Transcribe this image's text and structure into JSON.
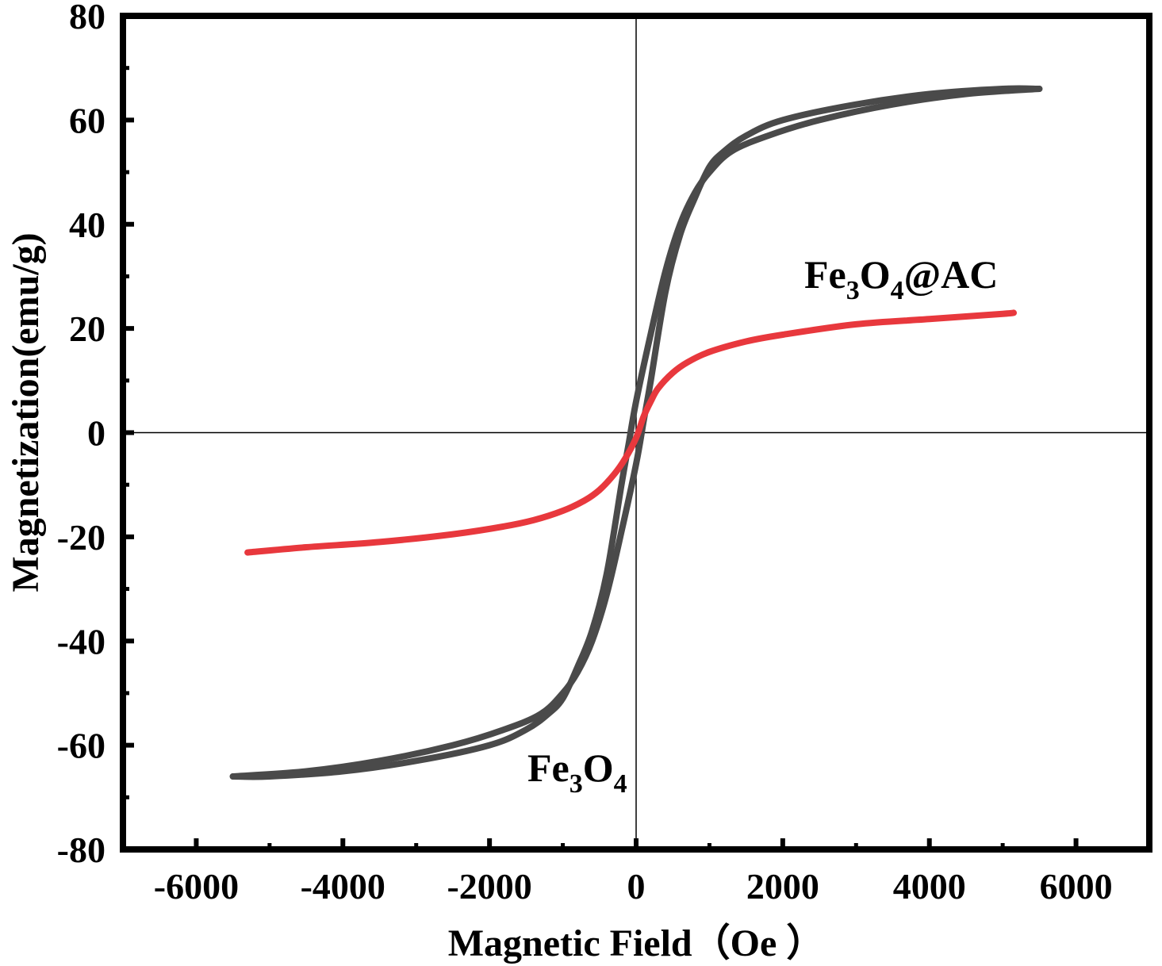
{
  "chart_data": {
    "type": "line",
    "title": "",
    "xlabel": "Magnetic Field（Oe ）",
    "ylabel": "Magnetization(emu/g)",
    "xlim": [
      -7000,
      7000
    ],
    "ylim": [
      -80,
      80
    ],
    "xticks": [
      -6000,
      -4000,
      -2000,
      0,
      2000,
      4000,
      6000
    ],
    "yticks": [
      -80,
      -60,
      -40,
      -20,
      0,
      20,
      40,
      60,
      80
    ],
    "xtick_labels": [
      "-6000",
      "-4000",
      "-2000",
      "0",
      "2000",
      "4000",
      "6000"
    ],
    "ytick_labels": [
      "-80",
      "-60",
      "-40",
      "-20",
      "0",
      "20",
      "40",
      "60",
      "80"
    ],
    "grid": false,
    "zero_lines": true,
    "series": [
      {
        "label_parts": [
          "Fe",
          "3",
          "O",
          "4"
        ],
        "color": "#4a4a4a",
        "branches": [
          {
            "x": [
              -5500,
              -4500,
              -3500,
              -2500,
              -1800,
              -1300,
              -1000,
              -800,
              -600,
              -400,
              -200,
              0,
              100,
              200,
              400,
              600,
              800,
              1000,
              1200,
              1500,
              2000,
              3000,
              4000,
              5000,
              5500
            ],
            "y": [
              -66,
              -65,
              -63,
              -60,
              -57,
              -54,
              -50,
              -46,
              -40,
              -31,
              -19,
              -6,
              2,
              10,
              27,
              38,
              45,
              51,
              54,
              57,
              60,
              63,
              65,
              66,
              66
            ]
          },
          {
            "x": [
              5500,
              4500,
              3500,
              2500,
              1800,
              1300,
              1000,
              800,
              600,
              400,
              200,
              0,
              -100,
              -200,
              -400,
              -600,
              -800,
              -1000,
              -1200,
              -1500,
              -2000,
              -3000,
              -4000,
              -5000,
              -5500
            ],
            "y": [
              66,
              65,
              63,
              60,
              57,
              54,
              50,
              46,
              40,
              31,
              19,
              6,
              -2,
              -10,
              -27,
              -38,
              -45,
              -51,
              -54,
              -57,
              -60,
              -63,
              -65,
              -66,
              -66
            ]
          }
        ]
      },
      {
        "label_parts": [
          "Fe",
          "3",
          "O",
          "4",
          "@AC"
        ],
        "color": "#e8383d",
        "branches": [
          {
            "x": [
              -5300,
              -4500,
              -3500,
              -2500,
              -1800,
              -1400,
              -1000,
              -700,
              -500,
              -300,
              -150,
              0,
              100,
              200,
              300,
              500,
              700,
              1000,
              1500,
              2000,
              3000,
              4000,
              5000,
              5150
            ],
            "y": [
              -23,
              -22,
              -21,
              -19.5,
              -18,
              -16.8,
              -15,
              -13,
              -11,
              -8,
              -5,
              -1,
              3,
              6,
              8.5,
              11.5,
              13.5,
              15.5,
              17.5,
              18.8,
              20.8,
              21.8,
              22.8,
              23
            ]
          }
        ]
      }
    ]
  }
}
